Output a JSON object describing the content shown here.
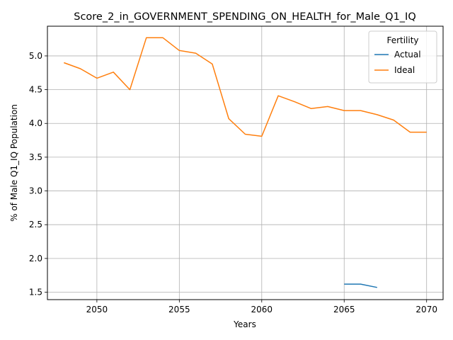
{
  "chart_data": {
    "type": "line",
    "title": "Score_2_in_GOVERNMENT_SPENDING_ON_HEALTH_for_Male_Q1_IQ",
    "xlabel": "Years",
    "ylabel": "% of Male Q1_IQ Population",
    "xlim": [
      2047.0,
      2071.0
    ],
    "ylim": [
      1.39,
      5.44
    ],
    "xticks": [
      2050,
      2055,
      2060,
      2065,
      2070
    ],
    "yticks": [
      1.5,
      2.0,
      2.5,
      3.0,
      3.5,
      4.0,
      4.5,
      5.0
    ],
    "ytick_labels": [
      "1.5",
      "2.0",
      "2.5",
      "3.0",
      "3.5",
      "4.0",
      "4.5",
      "5.0"
    ],
    "grid": true,
    "legend": {
      "title": "Fertility",
      "placement": "upper-right"
    },
    "series": [
      {
        "name": "Actual",
        "color": "#1f77b4",
        "x": [
          2065,
          2066,
          2067
        ],
        "y": [
          1.62,
          1.62,
          1.57
        ]
      },
      {
        "name": "Ideal",
        "color": "#ff7f0e",
        "x": [
          2048,
          2049,
          2050,
          2051,
          2052,
          2053,
          2054,
          2055,
          2056,
          2057,
          2058,
          2059,
          2060,
          2061,
          2062,
          2063,
          2064,
          2065,
          2066,
          2067,
          2068,
          2069,
          2070
        ],
        "y": [
          4.9,
          4.81,
          4.67,
          4.76,
          4.5,
          5.27,
          5.27,
          5.08,
          5.04,
          4.88,
          4.07,
          3.84,
          3.81,
          4.41,
          4.32,
          4.22,
          4.25,
          4.19,
          4.19,
          4.13,
          4.05,
          3.87,
          3.87
        ]
      }
    ]
  }
}
